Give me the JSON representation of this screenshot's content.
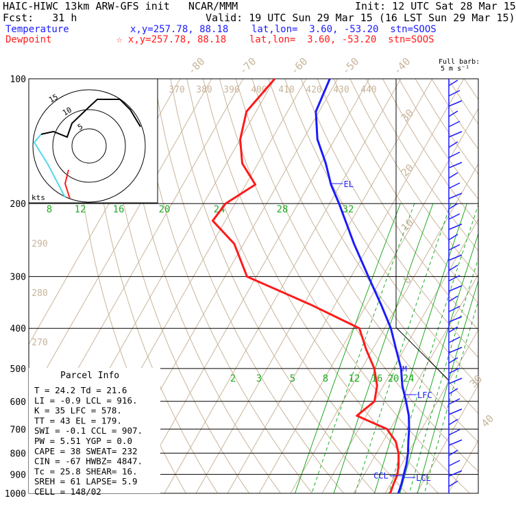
{
  "header": {
    "model": "HAIC-HIWC 13km ARW-GFS init   NCAR/MMM",
    "init": "Init: 12 UTC Sat 28 Mar 15",
    "fcst": "Fcst:   31 h",
    "valid": "Valid: 19 UTC Sun 29 Mar 15 (16 LST Sun 29 Mar 15)",
    "temp_label": "Temperature",
    "temp_info": "x,y=257.78, 88.18    lat,lon=  3.60, -53.20  stn=SOOS",
    "dew_label": "Dewpoint",
    "dew_info": "☆ x,y=257.78, 88.18    lat,lon=  3.60, -53.20  stn=SOOS",
    "barb_title_1": "Full barb:",
    "barb_title_2": "5 m s⁻¹"
  },
  "colors": {
    "temperature": "#1a1aff",
    "dewpoint": "#ff1a1a",
    "mixing": "#22aa22",
    "adiabat": "#c8b49a",
    "cyan": "#4fd8e8"
  },
  "chart_data": {
    "type": "line",
    "title": "",
    "y_axis": "pressure (hPa), log scale",
    "pressure_ticks": [
      100,
      200,
      300,
      400,
      500,
      600,
      700,
      800,
      900,
      1000
    ],
    "top_adiabat_labels": [
      "-80",
      "-70",
      "-60",
      "-50",
      "-40"
    ],
    "right_adiabat_labels": [
      "30",
      "20",
      "10",
      "0"
    ],
    "theta_e_labels": [
      "370",
      "380",
      "390",
      "400",
      "410",
      "420",
      "430",
      "440"
    ],
    "theta_e_left_labels": [
      "290",
      "280",
      "270"
    ],
    "mixing_labels_upper": [
      "8",
      "12",
      "16",
      "20",
      "24",
      "28",
      "32"
    ],
    "mixing_labels_lower": [
      "2",
      "3",
      "5",
      "8",
      "12",
      "16",
      "20",
      "24"
    ],
    "lower_right_labels": [
      "30",
      "40"
    ],
    "series": [
      {
        "name": "Temperature",
        "points": [
          [
            100,
            -72.5
          ],
          [
            120,
            -71
          ],
          [
            140,
            -65.5
          ],
          [
            160,
            -58.5
          ],
          [
            180,
            -53
          ],
          [
            200,
            -47
          ],
          [
            250,
            -35
          ],
          [
            300,
            -24.5
          ],
          [
            350,
            -15.5
          ],
          [
            400,
            -8
          ],
          [
            450,
            -2.5
          ],
          [
            500,
            2.5
          ],
          [
            550,
            6
          ],
          [
            600,
            10
          ],
          [
            650,
            13.5
          ],
          [
            700,
            16
          ],
          [
            750,
            18
          ],
          [
            800,
            20
          ],
          [
            850,
            21.5
          ],
          [
            900,
            22.5
          ],
          [
            950,
            23.5
          ],
          [
            1000,
            24.2
          ]
        ]
      },
      {
        "name": "Dewpoint",
        "points": [
          [
            100,
            -90
          ],
          [
            120,
            -93
          ],
          [
            140,
            -90
          ],
          [
            160,
            -85
          ],
          [
            180,
            -77
          ],
          [
            200,
            -83
          ],
          [
            220,
            -84
          ],
          [
            250,
            -73
          ],
          [
            300,
            -63
          ],
          [
            350,
            -38
          ],
          [
            400,
            -18
          ],
          [
            450,
            -12
          ],
          [
            500,
            -6
          ],
          [
            550,
            -2
          ],
          [
            600,
            0
          ],
          [
            650,
            -3
          ],
          [
            700,
            9
          ],
          [
            750,
            14
          ],
          [
            800,
            17
          ],
          [
            850,
            19
          ],
          [
            900,
            20.5
          ],
          [
            950,
            21
          ],
          [
            1000,
            21.6
          ]
        ]
      }
    ],
    "level_markers": [
      {
        "label": "EL",
        "p": 179
      },
      {
        "label": "LFC",
        "p": 578
      },
      {
        "label": "LCL",
        "p": 916
      },
      {
        "label": "CCL",
        "p": 907
      },
      {
        "label": "M",
        "p": 500
      }
    ],
    "hodograph_label": "kts",
    "hodograph_ring_labels": [
      "15",
      "10",
      "5"
    ]
  },
  "parcel_info": {
    "title": "Parcel Info",
    "rows": [
      "T   =   24.2  Td =  21.6",
      "LI  =   -0.9  LCL =  916.",
      "K   =     35  LFC =  578.",
      "TT  =     43  EL  =  179.",
      "SWI =   -0.1  CCL =  907.",
      "PW  =   5.51  YGP =   0.0",
      "CAPE =    38  SWEAT=  232",
      "CIN  =   -67  HWBZ= 4847.",
      "Tc  =   25.8  SHEAR=  16.",
      "SREH =    61  LAPSE=  5.9",
      "CELL = 148/02"
    ]
  }
}
